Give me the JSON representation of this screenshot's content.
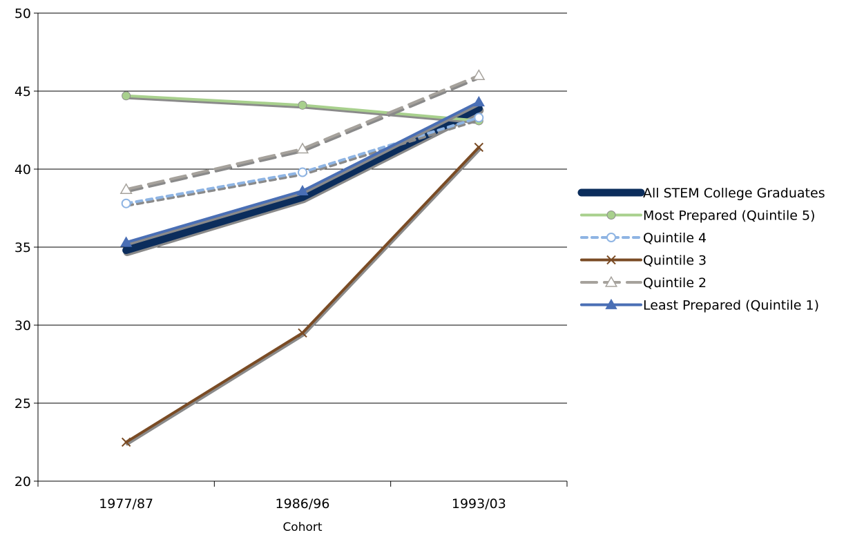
{
  "chart_data": {
    "type": "line",
    "title": "",
    "xlabel": "Cohort",
    "ylabel": "",
    "categories": [
      "1977/87",
      "1986/96",
      "1993/03"
    ],
    "ylim": [
      20,
      50
    ],
    "yticks": [
      20,
      25,
      30,
      35,
      40,
      45,
      50
    ],
    "grid": "horizontal",
    "legend_position": "right",
    "series": [
      {
        "name": "All STEM College Graduates",
        "values": [
          34.8,
          38.2,
          43.9
        ],
        "color": "#0b2d5c",
        "style": "thick",
        "marker": "none"
      },
      {
        "name": "Most Prepared (Quintile 5)",
        "values": [
          44.7,
          44.1,
          43.1
        ],
        "color": "#a8d08d",
        "style": "solid",
        "marker": "filled-circle"
      },
      {
        "name": "Quintile 4",
        "values": [
          37.8,
          39.8,
          43.3
        ],
        "color": "#8eb4e3",
        "style": "dotted",
        "marker": "open-circle"
      },
      {
        "name": "Quintile 3",
        "values": [
          22.5,
          29.5,
          41.4
        ],
        "color": "#7a4b24",
        "style": "solid",
        "marker": "x"
      },
      {
        "name": "Quintile 2",
        "values": [
          38.7,
          41.3,
          46.0
        ],
        "color": "#a6a29c",
        "style": "dashed",
        "marker": "open-triangle"
      },
      {
        "name": "Least Prepared (Quintile 1)",
        "values": [
          35.3,
          38.6,
          44.3
        ],
        "color": "#4a6fb5",
        "style": "solid",
        "marker": "filled-triangle"
      }
    ]
  }
}
